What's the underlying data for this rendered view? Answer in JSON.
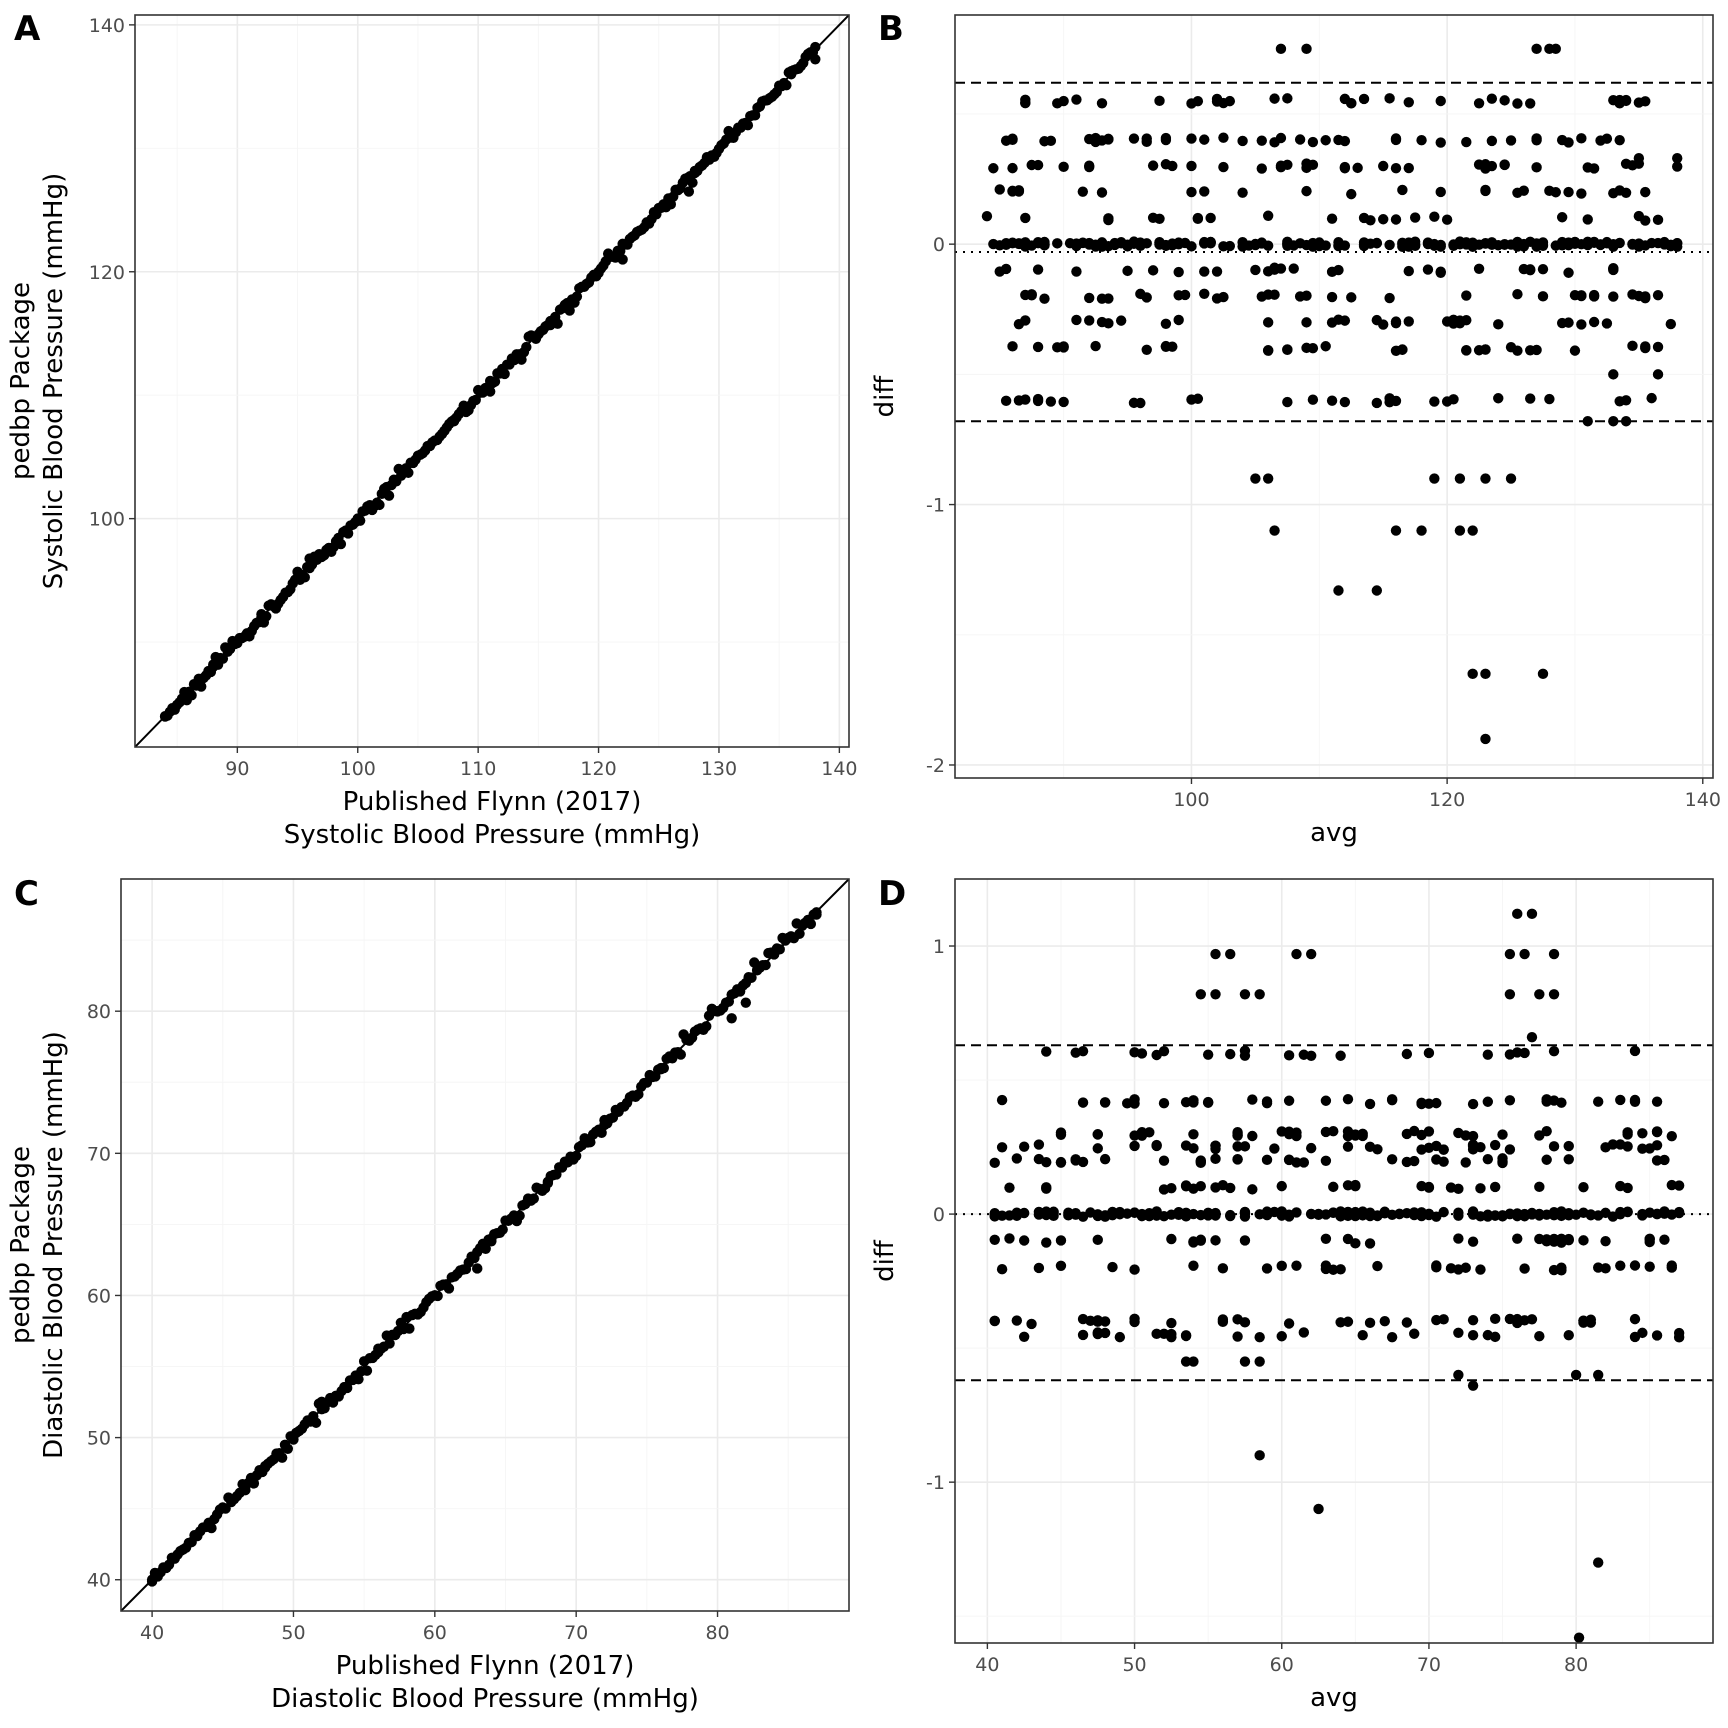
{
  "figure": {
    "width": 1728,
    "height": 1728,
    "point_color": "#000000",
    "grid_major": "#ebebeb",
    "grid_minor": "#f5f5f5",
    "frame_color": "#333333"
  },
  "chart_data": [
    {
      "panel": "A",
      "type": "scatter",
      "xlabel": [
        "Published Flynn (2017)",
        "Systolic Blood Pressure (mmHg)"
      ],
      "ylabel": [
        "pedbp Package",
        "Systolic Blood Pressure (mmHg)"
      ],
      "xlim": [
        81.5,
        140.8
      ],
      "ylim": [
        81.5,
        140.8
      ],
      "xticks": [
        90,
        100,
        110,
        120,
        130,
        140
      ],
      "yticks": [
        100,
        120,
        140
      ],
      "grid": true,
      "identity_line": true,
      "gen": {
        "kind": "identity",
        "xmin": 84,
        "xmax": 138,
        "step": 0.2,
        "sd": 0.32,
        "seed": 11
      },
      "points": [
        [
          84,
          84
        ],
        [
          88,
          88
        ],
        [
          92,
          92
        ],
        [
          96,
          96
        ],
        [
          100,
          100
        ],
        [
          104,
          104
        ],
        [
          108,
          108
        ],
        [
          112,
          112
        ],
        [
          116,
          116
        ],
        [
          120,
          120
        ],
        [
          124,
          124
        ],
        [
          128,
          128
        ],
        [
          132,
          132
        ],
        [
          136,
          136
        ],
        [
          138,
          138.2
        ],
        [
          127.5,
          126.5
        ],
        [
          122,
          121
        ],
        [
          111,
          110.3
        ]
      ]
    },
    {
      "panel": "B",
      "type": "scatter",
      "xlabel": [
        "avg"
      ],
      "ylabel": [
        "diff"
      ],
      "xlim": [
        81.5,
        140.8
      ],
      "ylim": [
        -2.05,
        0.88
      ],
      "xticks": [
        100,
        120,
        140
      ],
      "yticks": [
        -2,
        -1,
        0
      ],
      "grid": true,
      "hlines": [
        {
          "y": 0.62,
          "style": "dashed"
        },
        {
          "y": -0.68,
          "style": "dashed"
        },
        {
          "y": -0.03,
          "style": "dotted"
        }
      ],
      "gen": {
        "kind": "ba",
        "xmin": 84,
        "xmax": 138,
        "levels": [
          0,
          0,
          0,
          0,
          0,
          0.1,
          -0.1,
          0.2,
          -0.2,
          0.3,
          -0.3,
          0.4,
          -0.4,
          0.55,
          -0.6
        ],
        "count": 520,
        "seed": 23
      },
      "points": [
        [
          107,
          0.75
        ],
        [
          109,
          0.75
        ],
        [
          127,
          0.75
        ],
        [
          128,
          0.75
        ],
        [
          128.5,
          0.75
        ],
        [
          105,
          -0.9
        ],
        [
          106,
          -0.9
        ],
        [
          119,
          -0.9
        ],
        [
          121,
          -0.9
        ],
        [
          123,
          -0.9
        ],
        [
          125,
          -0.9
        ],
        [
          106.5,
          -1.1
        ],
        [
          116,
          -1.1
        ],
        [
          118,
          -1.1
        ],
        [
          121,
          -1.1
        ],
        [
          122,
          -1.1
        ],
        [
          111.5,
          -1.33
        ],
        [
          114.5,
          -1.33
        ],
        [
          122,
          -1.65
        ],
        [
          123,
          -1.65
        ],
        [
          127.5,
          -1.65
        ],
        [
          123,
          -1.9
        ],
        [
          131,
          -0.68
        ],
        [
          133,
          -0.68
        ],
        [
          134,
          -0.68
        ],
        [
          138,
          0.33
        ],
        [
          135,
          0.33
        ],
        [
          133,
          -0.5
        ],
        [
          136.5,
          -0.5
        ]
      ]
    },
    {
      "panel": "C",
      "type": "scatter",
      "xlabel": [
        "Published Flynn (2017)",
        "Diastolic Blood Pressure (mmHg)"
      ],
      "ylabel": [
        "pedbp Package",
        "Diastolic Blood Pressure (mmHg)"
      ],
      "xlim": [
        37.8,
        89.3
      ],
      "ylim": [
        37.8,
        89.3
      ],
      "xticks": [
        40,
        50,
        60,
        70,
        80
      ],
      "yticks": [
        40,
        50,
        60,
        70,
        80
      ],
      "grid": true,
      "identity_line": true,
      "gen": {
        "kind": "identity",
        "xmin": 40,
        "xmax": 87,
        "step": 0.2,
        "sd": 0.32,
        "seed": 37
      },
      "points": [
        [
          40,
          40
        ],
        [
          44,
          44
        ],
        [
          48,
          48
        ],
        [
          52,
          52
        ],
        [
          56,
          56
        ],
        [
          60,
          60
        ],
        [
          64,
          64
        ],
        [
          68,
          68
        ],
        [
          72,
          72
        ],
        [
          76,
          76
        ],
        [
          80,
          80
        ],
        [
          84,
          84
        ],
        [
          87,
          86.8
        ],
        [
          82,
          80.6
        ],
        [
          81,
          79.5
        ],
        [
          63,
          61.9
        ]
      ]
    },
    {
      "panel": "D",
      "type": "scatter",
      "xlabel": [
        "avg"
      ],
      "ylabel": [
        "diff"
      ],
      "xlim": [
        37.8,
        89.3
      ],
      "ylim": [
        -1.6,
        1.25
      ],
      "xticks": [
        40,
        50,
        60,
        70,
        80
      ],
      "yticks": [
        -1,
        0,
        1
      ],
      "grid": true,
      "hlines": [
        {
          "y": 0.63,
          "style": "dashed"
        },
        {
          "y": -0.62,
          "style": "dashed"
        },
        {
          "y": 0.0,
          "style": "dotted"
        }
      ],
      "gen": {
        "kind": "ba",
        "xmin": 40,
        "xmax": 87,
        "levels": [
          0,
          0,
          0,
          0,
          0.1,
          -0.1,
          0.2,
          -0.2,
          0.25,
          0.3,
          -0.4,
          0.42,
          0.6,
          -0.45
        ],
        "count": 520,
        "seed": 53
      },
      "points": [
        [
          55.5,
          0.97
        ],
        [
          56.5,
          0.97
        ],
        [
          61,
          0.97
        ],
        [
          62,
          0.97
        ],
        [
          75.5,
          0.97
        ],
        [
          76.5,
          0.97
        ],
        [
          78.5,
          0.97
        ],
        [
          76,
          1.12
        ],
        [
          77,
          1.12
        ],
        [
          54.5,
          0.82
        ],
        [
          55.5,
          0.82
        ],
        [
          57.5,
          0.82
        ],
        [
          58.5,
          0.82
        ],
        [
          75.5,
          0.82
        ],
        [
          77.5,
          0.82
        ],
        [
          78.5,
          0.82
        ],
        [
          77,
          0.66
        ],
        [
          58.5,
          -0.9
        ],
        [
          62.5,
          -1.1
        ],
        [
          81.5,
          -1.3
        ],
        [
          80.2,
          -1.58
        ],
        [
          53.5,
          -0.55
        ],
        [
          54,
          -0.55
        ],
        [
          57.5,
          -0.55
        ],
        [
          58.5,
          -0.55
        ],
        [
          72,
          -0.6
        ],
        [
          73,
          -0.64
        ],
        [
          80,
          -0.6
        ],
        [
          81.5,
          -0.6
        ]
      ]
    }
  ],
  "panel_tags": [
    "A",
    "B",
    "C",
    "D"
  ]
}
